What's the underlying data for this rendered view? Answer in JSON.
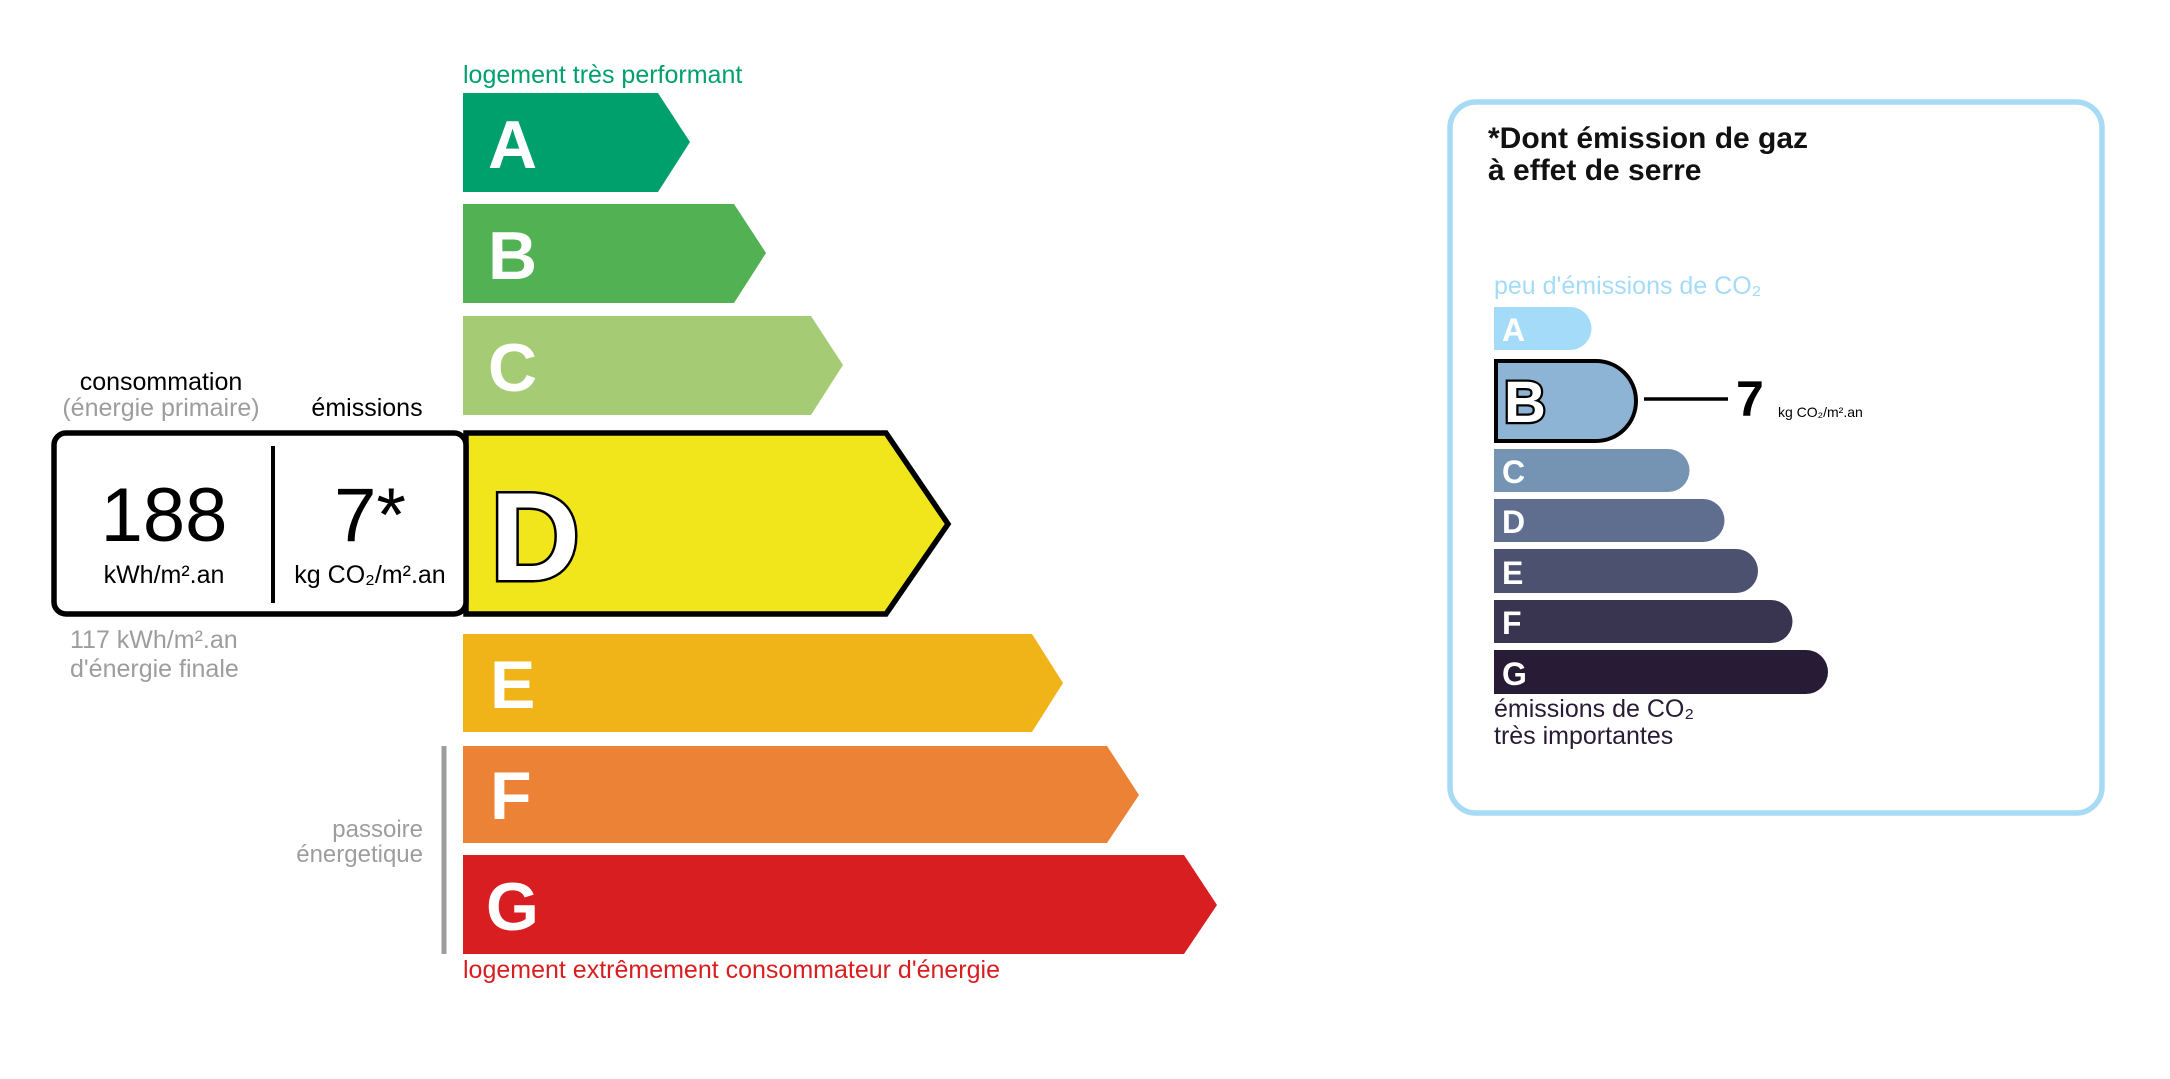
{
  "energy": {
    "top_label": "logement très performant",
    "bottom_label": "logement extrêmement consommateur d'énergie",
    "passoire_line1": "passoire",
    "passoire_line2": "énergetique",
    "classes": [
      {
        "letter": "A",
        "color": "#00a06c"
      },
      {
        "letter": "B",
        "color": "#52b153"
      },
      {
        "letter": "C",
        "color": "#a5cc74"
      },
      {
        "letter": "D",
        "color": "#f1e61c"
      },
      {
        "letter": "E",
        "color": "#f0b418"
      },
      {
        "letter": "F",
        "color": "#eb8235"
      },
      {
        "letter": "G",
        "color": "#d81e20"
      }
    ],
    "current_class": "D",
    "consumption_label": "consommation",
    "consumption_sub": "(énergie primaire)",
    "emissions_label": "émissions",
    "consumption_value": "188",
    "consumption_unit": "kWh/m².an",
    "emissions_value": "7*",
    "emissions_unit": "kg CO₂/m².an",
    "final_value": "117 kWh/m².an",
    "final_label": "d'énergie finale",
    "label_colors": {
      "top": "#00a06c",
      "bottom": "#d81e20",
      "gray": "#9d9d9d"
    }
  },
  "ges": {
    "title_line1": "*Dont émission de gaz",
    "title_line2": "à effet de serre",
    "top_label": "peu d'émissions de CO₂",
    "bottom_line1": "émissions de CO₂",
    "bottom_line2": "très importantes",
    "classes": [
      {
        "letter": "A",
        "color": "#a4dbf8"
      },
      {
        "letter": "B",
        "color": "#8db4d5"
      },
      {
        "letter": "C",
        "color": "#7593b3"
      },
      {
        "letter": "D",
        "color": "#5f6e8f"
      },
      {
        "letter": "E",
        "color": "#4d5170"
      },
      {
        "letter": "F",
        "color": "#393551"
      },
      {
        "letter": "G",
        "color": "#281b35"
      }
    ],
    "current_class": "B",
    "value": "7",
    "unit": "kg CO₂/m².an",
    "border_color": "#a6daf5"
  }
}
